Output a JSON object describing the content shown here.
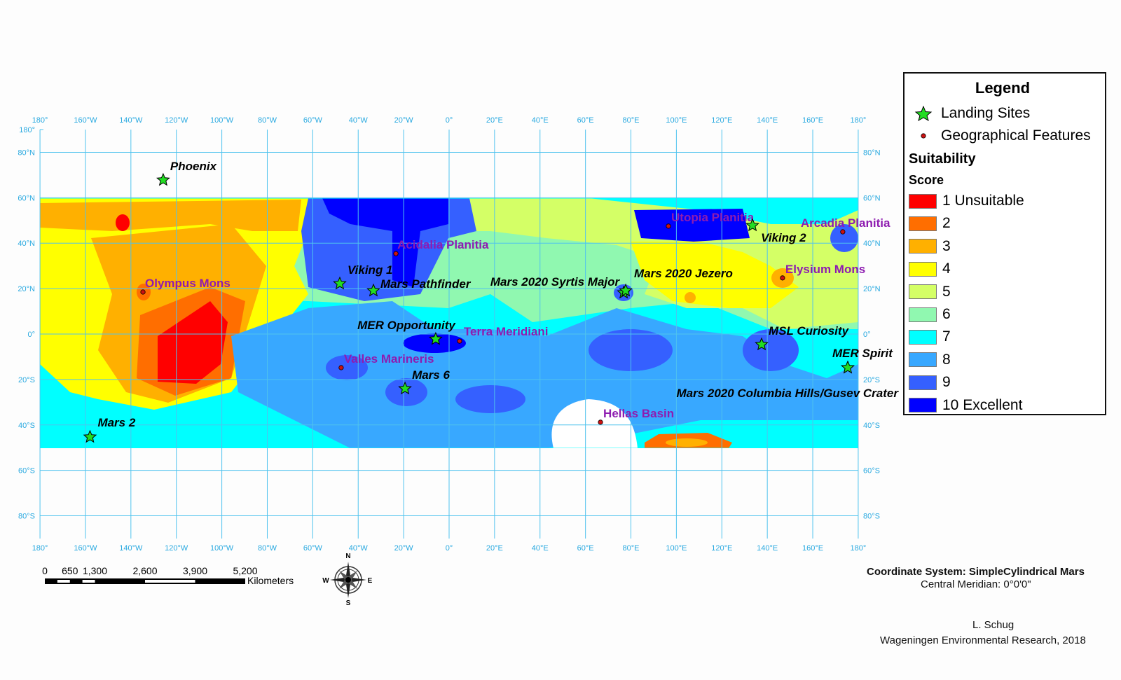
{
  "graticule": {
    "lon_labels": [
      "180°",
      "160°W",
      "140°W",
      "120°W",
      "100°W",
      "80°W",
      "60°W",
      "40°W",
      "20°W",
      "0°",
      "20°E",
      "40°E",
      "60°E",
      "80°E",
      "100°E",
      "120°E",
      "140°E",
      "160°E",
      "180°"
    ],
    "lat_labels_left": [
      "180°",
      "80°N",
      "60°N",
      "40°N",
      "20°N",
      "0°",
      "20°S",
      "40°S",
      "60°S",
      "80°S"
    ],
    "lat_labels_right": [
      "80°N",
      "60°N",
      "40°N",
      "20°N",
      "0°",
      "20°S",
      "40°S",
      "60°S",
      "80°S"
    ],
    "line_color": "#4fc3ee"
  },
  "landing_sites": [
    {
      "name": "Phoenix",
      "lon": -125.8,
      "lat": 67.8
    },
    {
      "name": "Viking 1",
      "lon": -48.1,
      "lat": 22.2
    },
    {
      "name": "Mars Pathfinder",
      "lon": -33.3,
      "lat": 19.1
    },
    {
      "name": "MER Opportunity",
      "lon": -5.9,
      "lat": -2.2
    },
    {
      "name": "Mars 6",
      "lon": -19.4,
      "lat": -24.0
    },
    {
      "name": "Mars 2",
      "lon": -158.0,
      "lat": -45.3
    },
    {
      "name": "Mars 2020 Syrtis Major",
      "lon": 76.8,
      "lat": 18.2
    },
    {
      "name": "Mars 2020 Jezero",
      "lon": 77.7,
      "lat": 19.1
    },
    {
      "name": "Viking 2",
      "lon": 133.5,
      "lat": 47.8
    },
    {
      "name": "MSL Curiosity",
      "lon": 137.5,
      "lat": -4.6
    },
    {
      "name": "MER Spirit",
      "lon": 175.4,
      "lat": -14.8
    },
    {
      "name": "Mars 2020 Columbia Hills/Gusev Crater",
      "lon": 175.4,
      "lat": -14.8
    }
  ],
  "features": [
    {
      "name": "Olympus Mons",
      "lon": -134.7,
      "lat": 18.5
    },
    {
      "name": "Acidalia Planitia",
      "lon": -23.4,
      "lat": 35.4
    },
    {
      "name": "Valles Marineris",
      "lon": -47.5,
      "lat": -14.8
    },
    {
      "name": "Terra Meridiani",
      "lon": 4.6,
      "lat": -3.1
    },
    {
      "name": "Hellas Basin",
      "lon": 66.6,
      "lat": -38.8
    },
    {
      "name": "Utopia Planitia",
      "lon": 96.5,
      "lat": 47.5
    },
    {
      "name": "Arcadia Planitia",
      "lon": 173.2,
      "lat": 45.0
    },
    {
      "name": "Elysium Mons",
      "lon": 146.7,
      "lat": 24.7
    }
  ],
  "legend": {
    "title": "Legend",
    "landing_sites": "Landing Sites",
    "features": "Geographical Features",
    "suitability": "Suitability",
    "score": "Score",
    "classes": [
      {
        "label": "1 Unsuitable",
        "color": "#ff0000"
      },
      {
        "label": "2",
        "color": "#ff6e00"
      },
      {
        "label": "3",
        "color": "#ffb000"
      },
      {
        "label": "4",
        "color": "#ffff00"
      },
      {
        "label": "5",
        "color": "#d4ff66"
      },
      {
        "label": "6",
        "color": "#90f8b0"
      },
      {
        "label": "7",
        "color": "#00ffff"
      },
      {
        "label": "8",
        "color": "#38a8ff"
      },
      {
        "label": "9",
        "color": "#3560ff"
      },
      {
        "label": "10 Excellent",
        "color": "#0000ff"
      }
    ],
    "star_color": "#22dd22",
    "feature_dot_color": "#cc1111"
  },
  "scale_bar": {
    "ticks": [
      "0",
      "650",
      "1,300",
      "2,600",
      "3,900",
      "5,200"
    ],
    "unit": "Kilometers"
  },
  "north_arrow": {
    "n": "N",
    "s": "S",
    "e": "E",
    "w": "W"
  },
  "info": {
    "coord_system": "Coordinate System: SimpleCylindrical Mars",
    "central_meridian": "Central Meridian: 0°0'0\"",
    "author": "L. Schug",
    "org": "Wageningen Environmental Research, 2018"
  }
}
